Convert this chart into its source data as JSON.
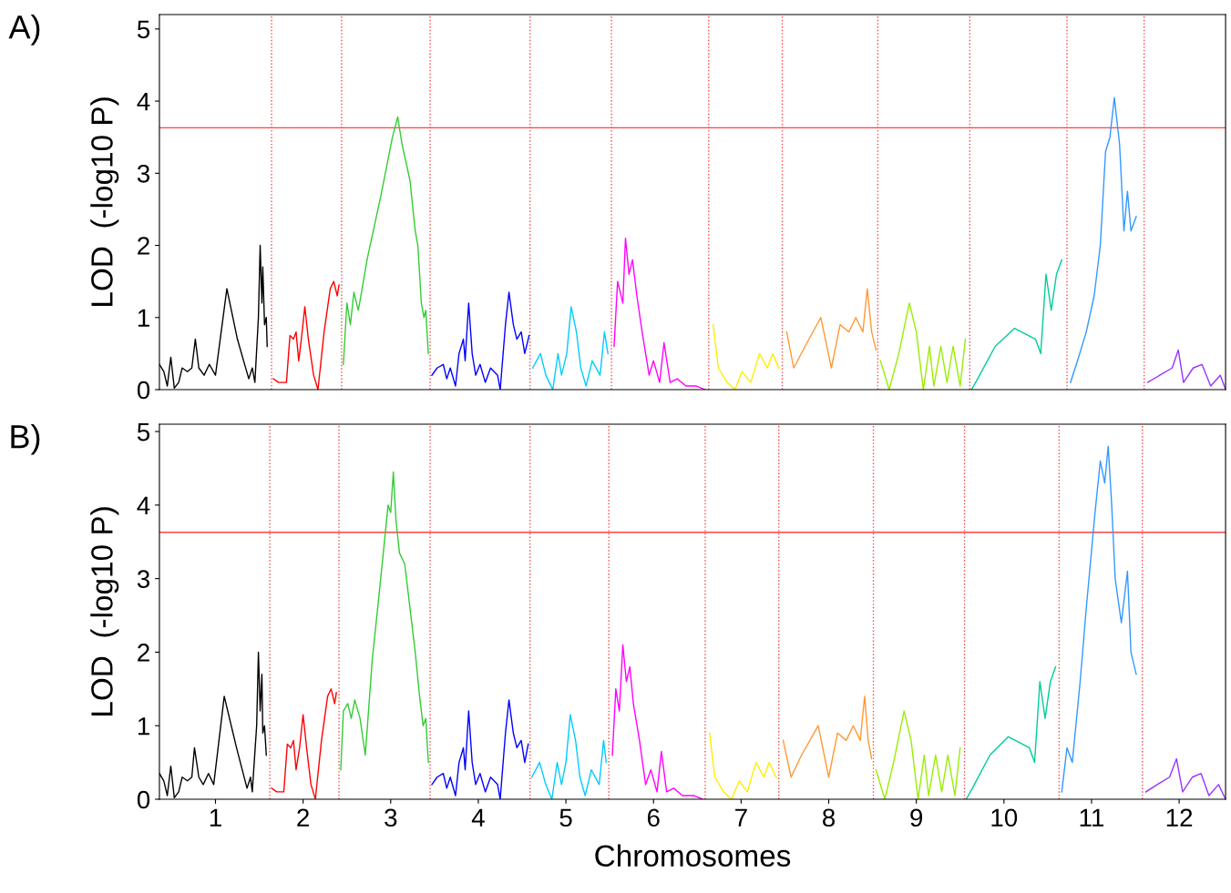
{
  "chart_data": [
    {
      "type": "line",
      "annotations": [
        "A)"
      ],
      "ylabel": "LOD  (-log10 P)",
      "xlim": [
        0.36,
        12.53
      ],
      "ylim": [
        0,
        5.2
      ],
      "yticks": [
        0,
        1,
        2,
        3,
        4,
        5
      ],
      "tick_labels": "y",
      "grid": false,
      "legend": false,
      "ref_lines": [
        {
          "axis": "y",
          "value": 3.63,
          "color": "#ff4444",
          "line_style": "solid"
        },
        {
          "axis": "x",
          "value": 1.64,
          "color": "#ff4444",
          "line_style": "dotted"
        },
        {
          "axis": "x",
          "value": 2.44,
          "color": "#ff4444",
          "line_style": "dotted"
        },
        {
          "axis": "x",
          "value": 3.45,
          "color": "#ff4444",
          "line_style": "dotted"
        },
        {
          "axis": "x",
          "value": 4.59,
          "color": "#ff4444",
          "line_style": "dotted"
        },
        {
          "axis": "x",
          "value": 5.52,
          "color": "#ff4444",
          "line_style": "dotted"
        },
        {
          "axis": "x",
          "value": 6.63,
          "color": "#ff4444",
          "line_style": "dotted"
        },
        {
          "axis": "x",
          "value": 7.47,
          "color": "#ff4444",
          "line_style": "dotted"
        },
        {
          "axis": "x",
          "value": 8.56,
          "color": "#ff4444",
          "line_style": "dotted"
        },
        {
          "axis": "x",
          "value": 9.61,
          "color": "#ff4444",
          "line_style": "dotted"
        },
        {
          "axis": "x",
          "value": 10.72,
          "color": "#ff4444",
          "line_style": "dotted"
        },
        {
          "axis": "x",
          "value": 11.6,
          "color": "#ff4444",
          "line_style": "dotted"
        }
      ],
      "series": [
        {
          "color": "#000000",
          "x": [
            0.36,
            0.41,
            0.45,
            0.49,
            0.53,
            0.58,
            0.62,
            0.68,
            0.73,
            0.77,
            0.81,
            0.87,
            0.93,
            1.0,
            1.13,
            1.25,
            1.38,
            1.42,
            1.45,
            1.49,
            1.51,
            1.53,
            1.54,
            1.56,
            1.58,
            1.59
          ],
          "values": [
            0.35,
            0.25,
            0.05,
            0.45,
            0.02,
            0.1,
            0.3,
            0.25,
            0.3,
            0.7,
            0.3,
            0.2,
            0.35,
            0.2,
            1.4,
            0.7,
            0.15,
            0.3,
            0.1,
            1.0,
            2.0,
            1.2,
            1.7,
            0.9,
            1.0,
            0.6
          ]
        },
        {
          "color": "#ff0000",
          "x": [
            1.66,
            1.72,
            1.81,
            1.85,
            1.89,
            1.92,
            1.95,
            1.98,
            2.02,
            2.06,
            2.12,
            2.17,
            2.24,
            2.31,
            2.35,
            2.39,
            2.41
          ],
          "values": [
            0.15,
            0.1,
            0.1,
            0.75,
            0.7,
            0.8,
            0.4,
            0.7,
            1.15,
            0.7,
            0.2,
            0.0,
            0.8,
            1.4,
            1.5,
            1.3,
            1.45
          ]
        },
        {
          "color": "#33cc33",
          "x": [
            2.46,
            2.5,
            2.54,
            2.58,
            2.63,
            2.66,
            2.73,
            2.89,
            3.02,
            3.08,
            3.13,
            3.22,
            3.28,
            3.31,
            3.35,
            3.38,
            3.4,
            3.43
          ],
          "values": [
            0.35,
            1.2,
            0.9,
            1.35,
            1.1,
            1.3,
            1.8,
            2.7,
            3.5,
            3.78,
            3.4,
            2.9,
            2.2,
            2.0,
            1.2,
            1.0,
            1.1,
            0.5
          ]
        },
        {
          "color": "#0000ff",
          "x": [
            3.47,
            3.53,
            3.6,
            3.64,
            3.68,
            3.74,
            3.78,
            3.83,
            3.85,
            3.89,
            3.93,
            3.97,
            4.02,
            4.08,
            4.14,
            4.22,
            4.25,
            4.31,
            4.35,
            4.4,
            4.44,
            4.49,
            4.53,
            4.58
          ],
          "values": [
            0.2,
            0.3,
            0.35,
            0.15,
            0.3,
            0.05,
            0.5,
            0.7,
            0.4,
            1.2,
            0.5,
            0.2,
            0.35,
            0.1,
            0.3,
            0.2,
            0.0,
            0.9,
            1.35,
            0.9,
            0.7,
            0.8,
            0.5,
            0.75
          ]
        },
        {
          "color": "#00ccff",
          "x": [
            4.62,
            4.71,
            4.77,
            4.85,
            4.91,
            4.95,
            5.01,
            5.06,
            5.12,
            5.17,
            5.23,
            5.3,
            5.39,
            5.44,
            5.48
          ],
          "values": [
            0.3,
            0.5,
            0.2,
            0.0,
            0.5,
            0.2,
            0.5,
            1.15,
            0.8,
            0.3,
            0.05,
            0.4,
            0.2,
            0.8,
            0.5
          ]
        },
        {
          "color": "#ff00ff",
          "x": [
            5.55,
            5.59,
            5.65,
            5.68,
            5.72,
            5.76,
            5.81,
            5.87,
            5.95,
            6.0,
            6.07,
            6.12,
            6.19,
            6.27,
            6.37,
            6.49,
            6.59
          ],
          "values": [
            0.6,
            1.5,
            1.2,
            2.1,
            1.6,
            1.8,
            1.3,
            0.8,
            0.2,
            0.4,
            0.1,
            0.65,
            0.1,
            0.15,
            0.05,
            0.05,
            0.0
          ]
        },
        {
          "color": "#ffee00",
          "x": [
            6.68,
            6.74,
            6.84,
            6.93,
            7.01,
            7.11,
            7.21,
            7.3,
            7.36,
            7.43
          ],
          "values": [
            0.9,
            0.3,
            0.1,
            0.0,
            0.25,
            0.1,
            0.5,
            0.3,
            0.5,
            0.3
          ]
        },
        {
          "color": "#ff9933",
          "x": [
            7.52,
            7.6,
            7.73,
            7.91,
            8.03,
            8.13,
            8.23,
            8.31,
            8.39,
            8.44,
            8.49,
            8.54
          ],
          "values": [
            0.8,
            0.3,
            0.6,
            1.0,
            0.3,
            0.9,
            0.8,
            1.0,
            0.8,
            1.4,
            0.8,
            0.55
          ]
        },
        {
          "color": "#99ee00",
          "x": [
            8.59,
            8.69,
            8.8,
            8.92,
            9.0,
            9.08,
            9.15,
            9.2,
            9.28,
            9.35,
            9.42,
            9.5,
            9.56
          ],
          "values": [
            0.4,
            0.0,
            0.5,
            1.2,
            0.8,
            0.0,
            0.6,
            0.05,
            0.6,
            0.1,
            0.6,
            0.05,
            0.7
          ]
        },
        {
          "color": "#00cc99",
          "x": [
            9.63,
            9.7,
            9.9,
            10.12,
            10.36,
            10.42,
            10.48,
            10.54,
            10.6,
            10.66
          ],
          "values": [
            0.0,
            0.15,
            0.6,
            0.85,
            0.7,
            0.5,
            1.6,
            1.1,
            1.6,
            1.8
          ]
        },
        {
          "color": "#3399ff",
          "x": [
            10.76,
            10.84,
            10.94,
            11.03,
            11.1,
            11.16,
            11.21,
            11.26,
            11.32,
            11.37,
            11.41,
            11.45,
            11.51
          ],
          "values": [
            0.1,
            0.4,
            0.8,
            1.3,
            2.0,
            3.3,
            3.5,
            4.05,
            3.4,
            2.2,
            2.75,
            2.2,
            2.4
          ]
        },
        {
          "color": "#9933ff",
          "x": [
            11.64,
            11.78,
            11.92,
            11.99,
            12.05,
            12.16,
            12.26,
            12.36,
            12.47,
            12.53
          ],
          "values": [
            0.1,
            0.2,
            0.3,
            0.55,
            0.1,
            0.3,
            0.35,
            0.05,
            0.2,
            0.0
          ]
        }
      ]
    },
    {
      "type": "line",
      "annotations": [
        "B)"
      ],
      "ylabel": "LOD  (-log10 P)",
      "xlabel": "Chromosomes",
      "xlim": [
        0.36,
        12.53
      ],
      "ylim": [
        0,
        5.1
      ],
      "yticks": [
        0,
        1,
        2,
        3,
        4,
        5
      ],
      "xticks": [
        1,
        2,
        3,
        4,
        5,
        6,
        7,
        8,
        9,
        10,
        11,
        12
      ],
      "grid": false,
      "legend": false,
      "ref_lines": [
        {
          "axis": "y",
          "value": 3.63,
          "color": "#ff4444",
          "line_style": "solid"
        },
        {
          "axis": "x",
          "value": 1.62,
          "color": "#ff4444",
          "line_style": "dotted"
        },
        {
          "axis": "x",
          "value": 2.41,
          "color": "#ff4444",
          "line_style": "dotted"
        },
        {
          "axis": "x",
          "value": 3.45,
          "color": "#ff4444",
          "line_style": "dotted"
        },
        {
          "axis": "x",
          "value": 4.59,
          "color": "#ff4444",
          "line_style": "dotted"
        },
        {
          "axis": "x",
          "value": 5.49,
          "color": "#ff4444",
          "line_style": "dotted"
        },
        {
          "axis": "x",
          "value": 6.59,
          "color": "#ff4444",
          "line_style": "dotted"
        },
        {
          "axis": "x",
          "value": 7.43,
          "color": "#ff4444",
          "line_style": "dotted"
        },
        {
          "axis": "x",
          "value": 8.51,
          "color": "#ff4444",
          "line_style": "dotted"
        },
        {
          "axis": "x",
          "value": 9.55,
          "color": "#ff4444",
          "line_style": "dotted"
        },
        {
          "axis": "x",
          "value": 10.63,
          "color": "#ff4444",
          "line_style": "dotted"
        },
        {
          "axis": "x",
          "value": 11.58,
          "color": "#ff4444",
          "line_style": "dotted"
        }
      ],
      "series": [
        {
          "color": "#000000",
          "x": [
            0.36,
            0.41,
            0.45,
            0.49,
            0.53,
            0.58,
            0.62,
            0.68,
            0.73,
            0.76,
            0.81,
            0.86,
            0.92,
            0.98,
            1.1,
            1.24,
            1.36,
            1.4,
            1.42,
            1.47,
            1.49,
            1.51,
            1.53,
            1.54,
            1.56,
            1.58
          ],
          "values": [
            0.35,
            0.25,
            0.05,
            0.45,
            0.02,
            0.1,
            0.3,
            0.25,
            0.3,
            0.7,
            0.3,
            0.2,
            0.35,
            0.2,
            1.4,
            0.7,
            0.15,
            0.3,
            0.1,
            1.0,
            2.0,
            1.2,
            1.7,
            0.9,
            1.0,
            0.6
          ]
        },
        {
          "color": "#ff0000",
          "x": [
            1.64,
            1.7,
            1.78,
            1.82,
            1.86,
            1.89,
            1.92,
            1.96,
            2.0,
            2.04,
            2.09,
            2.14,
            2.21,
            2.28,
            2.32,
            2.36,
            2.38
          ],
          "values": [
            0.15,
            0.1,
            0.1,
            0.75,
            0.7,
            0.8,
            0.4,
            0.7,
            1.15,
            0.7,
            0.2,
            0.0,
            0.8,
            1.4,
            1.5,
            1.3,
            1.45
          ]
        },
        {
          "color": "#33cc33",
          "x": [
            2.43,
            2.46,
            2.51,
            2.55,
            2.59,
            2.65,
            2.71,
            2.79,
            2.86,
            2.92,
            2.97,
            3.0,
            3.03,
            3.06,
            3.1,
            3.16,
            3.22,
            3.28,
            3.33,
            3.37,
            3.4,
            3.43
          ],
          "values": [
            0.4,
            1.2,
            1.3,
            1.1,
            1.35,
            1.1,
            0.6,
            1.9,
            2.7,
            3.4,
            4.0,
            3.9,
            4.45,
            3.8,
            3.35,
            3.2,
            2.6,
            2.0,
            1.4,
            1.0,
            1.1,
            0.5
          ]
        },
        {
          "color": "#0000ff",
          "x": [
            3.47,
            3.53,
            3.6,
            3.64,
            3.68,
            3.74,
            3.78,
            3.83,
            3.85,
            3.89,
            3.93,
            3.97,
            4.02,
            4.08,
            4.14,
            4.22,
            4.25,
            4.31,
            4.35,
            4.4,
            4.44,
            4.49,
            4.53,
            4.57
          ],
          "values": [
            0.2,
            0.3,
            0.35,
            0.15,
            0.3,
            0.05,
            0.5,
            0.7,
            0.4,
            1.2,
            0.5,
            0.2,
            0.35,
            0.1,
            0.3,
            0.2,
            0.0,
            0.9,
            1.35,
            0.9,
            0.7,
            0.8,
            0.5,
            0.75
          ]
        },
        {
          "color": "#00ccff",
          "x": [
            4.61,
            4.7,
            4.77,
            4.84,
            4.9,
            4.95,
            5.0,
            5.05,
            5.11,
            5.16,
            5.22,
            5.29,
            5.38,
            5.43,
            5.46
          ],
          "values": [
            0.3,
            0.5,
            0.2,
            0.0,
            0.5,
            0.2,
            0.5,
            1.15,
            0.8,
            0.3,
            0.05,
            0.4,
            0.2,
            0.8,
            0.5
          ]
        },
        {
          "color": "#ff00ff",
          "x": [
            5.53,
            5.57,
            5.61,
            5.65,
            5.69,
            5.73,
            5.77,
            5.84,
            5.91,
            5.97,
            6.04,
            6.09,
            6.15,
            6.23,
            6.33,
            6.46,
            6.56
          ],
          "values": [
            0.6,
            1.5,
            1.2,
            2.1,
            1.6,
            1.8,
            1.3,
            0.8,
            0.2,
            0.4,
            0.1,
            0.65,
            0.1,
            0.15,
            0.05,
            0.05,
            0.0
          ]
        },
        {
          "color": "#ffee00",
          "x": [
            6.64,
            6.7,
            6.8,
            6.89,
            6.98,
            7.07,
            7.17,
            7.26,
            7.32,
            7.4
          ],
          "values": [
            0.9,
            0.3,
            0.1,
            0.0,
            0.25,
            0.1,
            0.5,
            0.3,
            0.5,
            0.3
          ]
        },
        {
          "color": "#ff9933",
          "x": [
            7.48,
            7.57,
            7.69,
            7.88,
            8.0,
            8.1,
            8.2,
            8.28,
            8.36,
            8.41,
            8.45,
            8.49
          ],
          "values": [
            0.8,
            0.3,
            0.6,
            1.0,
            0.3,
            0.9,
            0.8,
            1.0,
            0.8,
            1.4,
            0.8,
            0.55
          ]
        },
        {
          "color": "#99ee00",
          "x": [
            8.54,
            8.64,
            8.74,
            8.86,
            8.94,
            9.02,
            9.09,
            9.14,
            9.22,
            9.29,
            9.36,
            9.44,
            9.5
          ],
          "values": [
            0.4,
            0.0,
            0.5,
            1.2,
            0.8,
            0.0,
            0.6,
            0.05,
            0.6,
            0.1,
            0.6,
            0.05,
            0.7
          ]
        },
        {
          "color": "#00cc99",
          "x": [
            9.57,
            9.64,
            9.84,
            10.05,
            10.29,
            10.35,
            10.41,
            10.47,
            10.53,
            10.59
          ],
          "values": [
            0.0,
            0.15,
            0.6,
            0.85,
            0.7,
            0.5,
            1.6,
            1.1,
            1.6,
            1.8
          ]
        },
        {
          "color": "#3399ff",
          "x": [
            10.66,
            10.72,
            10.78,
            10.87,
            10.94,
            11.04,
            11.1,
            11.15,
            11.19,
            11.23,
            11.27,
            11.34,
            11.41,
            11.45,
            11.51
          ],
          "values": [
            0.1,
            0.7,
            0.5,
            1.6,
            2.6,
            3.9,
            4.6,
            4.3,
            4.8,
            4.0,
            3.0,
            2.4,
            3.1,
            2.0,
            1.7
          ]
        },
        {
          "color": "#9933ff",
          "x": [
            11.62,
            11.75,
            11.89,
            11.97,
            12.04,
            12.15,
            12.25,
            12.34,
            12.45,
            12.53
          ],
          "values": [
            0.1,
            0.2,
            0.3,
            0.55,
            0.1,
            0.3,
            0.35,
            0.05,
            0.2,
            0.0
          ]
        }
      ]
    }
  ]
}
